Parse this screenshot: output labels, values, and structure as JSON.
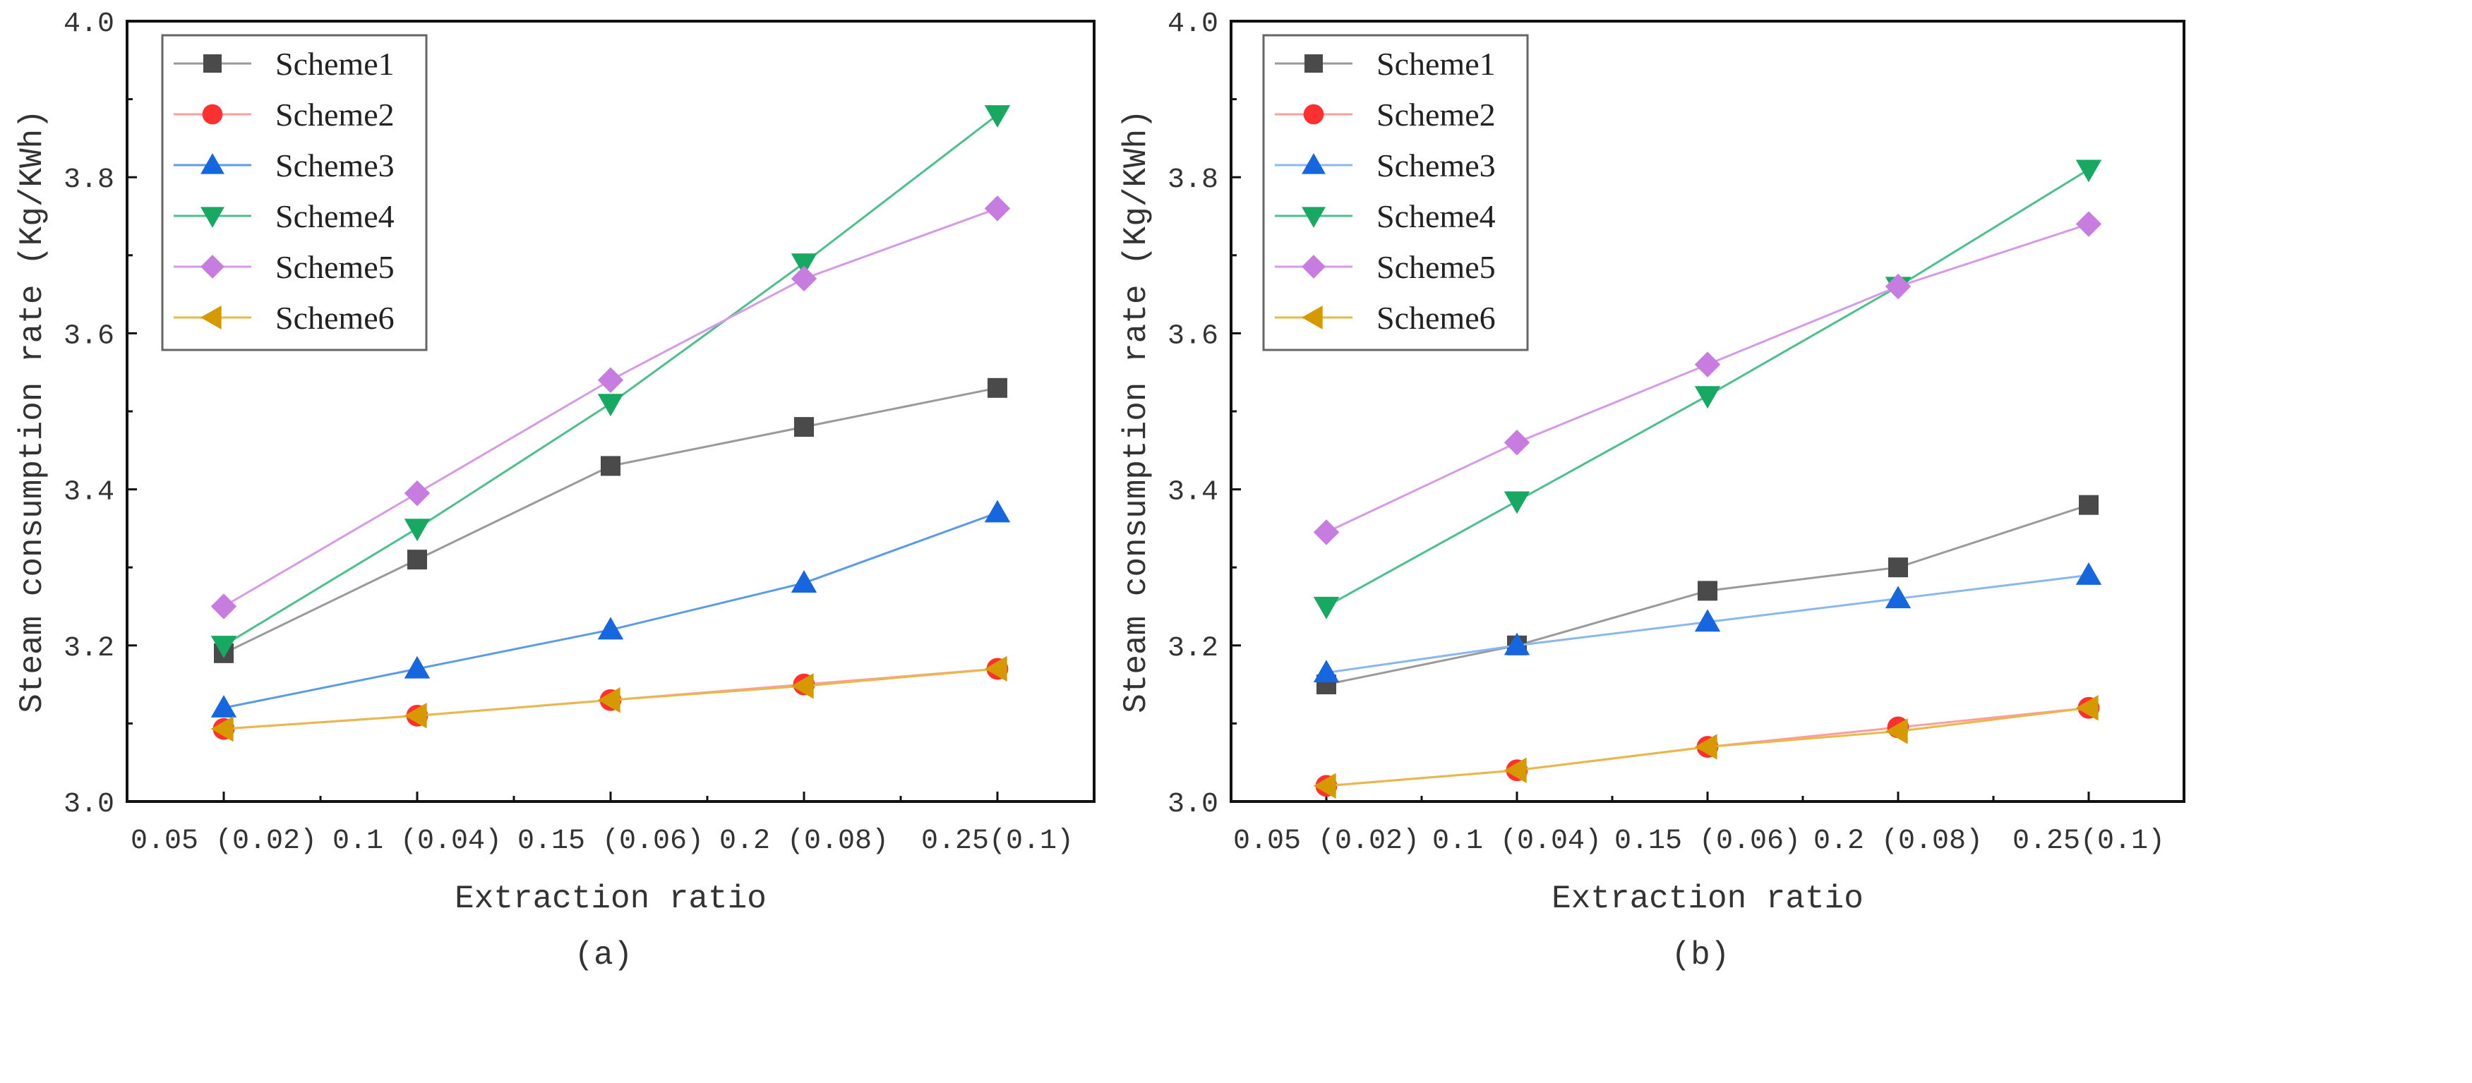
{
  "chart_data": [
    {
      "type": "line",
      "panel_label": "(a)",
      "xlabel": "Extraction ratio",
      "ylabel": "Steam consumption rate (Kg/KWh)",
      "categories": [
        "0.05 (0.02)",
        "0.1 (0.04)",
        "0.15 (0.06)",
        "0.2 (0.08)",
        "0.25(0.1)"
      ],
      "ylim": [
        3.0,
        4.0
      ],
      "yticks": [
        "3.0",
        "3.2",
        "3.4",
        "3.6",
        "3.8",
        "4.0"
      ],
      "legend_position": "top-left",
      "series": [
        {
          "name": "Scheme1",
          "marker": "square",
          "line_color": "#9a9a9a",
          "marker_color": "#4a4a4a",
          "values": [
            3.19,
            3.31,
            3.43,
            3.48,
            3.53
          ]
        },
        {
          "name": "Scheme2",
          "marker": "circle",
          "line_color": "#ff9c9c",
          "marker_color": "#ff3030",
          "values": [
            3.093,
            3.11,
            3.13,
            3.15,
            3.17
          ]
        },
        {
          "name": "Scheme3",
          "marker": "triangle-up",
          "line_color": "#5a9be8",
          "marker_color": "#1666e0",
          "values": [
            3.12,
            3.17,
            3.22,
            3.28,
            3.37
          ]
        },
        {
          "name": "Scheme4",
          "marker": "triangle-down",
          "line_color": "#4cc08c",
          "marker_color": "#17a862",
          "values": [
            3.2,
            3.35,
            3.51,
            3.69,
            3.88
          ]
        },
        {
          "name": "Scheme5",
          "marker": "diamond",
          "line_color": "#d59be6",
          "marker_color": "#c77ddf",
          "values": [
            3.25,
            3.395,
            3.54,
            3.67,
            3.76
          ]
        },
        {
          "name": "Scheme6",
          "marker": "triangle-left",
          "line_color": "#e8b84a",
          "marker_color": "#d69a00",
          "values": [
            3.093,
            3.11,
            3.13,
            3.148,
            3.17
          ]
        }
      ]
    },
    {
      "type": "line",
      "panel_label": "(b)",
      "xlabel": "Extraction ratio",
      "ylabel": "Steam consumption rate (Kg/KWh)",
      "categories": [
        "0.05 (0.02)",
        "0.1 (0.04)",
        "0.15 (0.06)",
        "0.2 (0.08)",
        "0.25(0.1)"
      ],
      "ylim": [
        3.0,
        4.0
      ],
      "yticks": [
        "3.0",
        "3.2",
        "3.4",
        "3.6",
        "3.8",
        "4.0"
      ],
      "legend_position": "top-left",
      "series": [
        {
          "name": "Scheme1",
          "marker": "square",
          "line_color": "#9a9a9a",
          "marker_color": "#4a4a4a",
          "values": [
            3.15,
            3.2,
            3.27,
            3.3,
            3.38
          ]
        },
        {
          "name": "Scheme2",
          "marker": "circle",
          "line_color": "#ff9c9c",
          "marker_color": "#ff3030",
          "values": [
            3.02,
            3.04,
            3.07,
            3.095,
            3.12
          ]
        },
        {
          "name": "Scheme3",
          "marker": "triangle-up",
          "line_color": "#8ab8ee",
          "marker_color": "#1666e0",
          "values": [
            3.165,
            3.2,
            3.23,
            3.26,
            3.29
          ]
        },
        {
          "name": "Scheme4",
          "marker": "triangle-down",
          "line_color": "#4cc08c",
          "marker_color": "#17a862",
          "values": [
            3.25,
            3.385,
            3.52,
            3.66,
            3.81
          ]
        },
        {
          "name": "Scheme5",
          "marker": "diamond",
          "line_color": "#d59be6",
          "marker_color": "#c77ddf",
          "values": [
            3.345,
            3.46,
            3.56,
            3.66,
            3.74
          ]
        },
        {
          "name": "Scheme6",
          "marker": "triangle-left",
          "line_color": "#e8b84a",
          "marker_color": "#d69a00",
          "values": [
            3.02,
            3.04,
            3.07,
            3.09,
            3.12
          ]
        }
      ]
    }
  ]
}
